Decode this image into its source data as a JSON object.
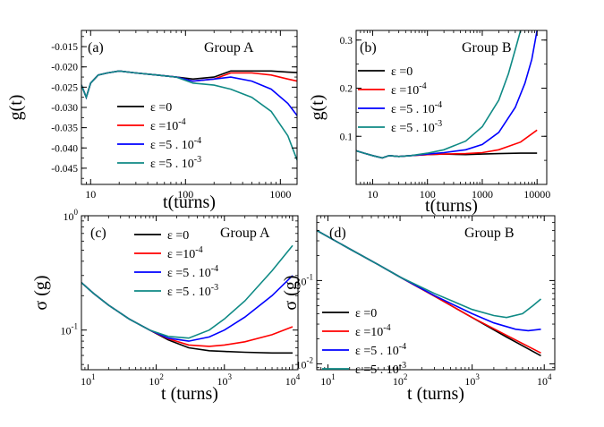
{
  "chart_data": [
    {
      "type": "line",
      "panel_tag": "(a)",
      "group_label": "Group A",
      "xlabel": "t(turns)",
      "ylabel": "g(t)",
      "xscale": "log",
      "yscale": "linear",
      "xlim": [
        8,
        1500
      ],
      "ylim": [
        -0.049,
        -0.011
      ],
      "xticks": [
        {
          "v": 10,
          "label": "10"
        },
        {
          "v": 100,
          "label": "100"
        },
        {
          "v": 1000,
          "label": "1000"
        }
      ],
      "yticks": [
        {
          "v": -0.015,
          "label": "-0.015"
        },
        {
          "v": -0.02,
          "label": "-0.020"
        },
        {
          "v": -0.025,
          "label": "-0.025"
        },
        {
          "v": -0.03,
          "label": "-0.030"
        },
        {
          "v": -0.035,
          "label": "-0.035"
        },
        {
          "v": -0.04,
          "label": "-0.040"
        },
        {
          "v": -0.045,
          "label": "-0.045"
        }
      ],
      "legend_position": "bottom-left",
      "series": [
        {
          "name": "ε =0",
          "color": "#000000",
          "x": [
            8,
            9,
            10,
            12,
            15,
            20,
            30,
            50,
            80,
            120,
            200,
            300,
            500,
            800,
            1200,
            1500
          ],
          "y": [
            -0.0245,
            -0.0275,
            -0.024,
            -0.022,
            -0.0215,
            -0.021,
            -0.0215,
            -0.022,
            -0.0225,
            -0.023,
            -0.0225,
            -0.021,
            -0.021,
            -0.021,
            -0.0213,
            -0.0214
          ]
        },
        {
          "name": "ε =10-4",
          "color": "#ff0000",
          "x": [
            8,
            9,
            10,
            12,
            15,
            20,
            30,
            50,
            80,
            120,
            200,
            300,
            500,
            800,
            1200,
            1500
          ],
          "y": [
            -0.0245,
            -0.0275,
            -0.024,
            -0.022,
            -0.0215,
            -0.021,
            -0.0215,
            -0.022,
            -0.0225,
            -0.0235,
            -0.023,
            -0.0215,
            -0.0215,
            -0.022,
            -0.023,
            -0.0235
          ]
        },
        {
          "name": "ε =5 . 10-4",
          "color": "#0000ff",
          "x": [
            8,
            9,
            10,
            12,
            15,
            20,
            30,
            50,
            80,
            120,
            200,
            300,
            500,
            800,
            1200,
            1500
          ],
          "y": [
            -0.0245,
            -0.0275,
            -0.024,
            -0.022,
            -0.0215,
            -0.021,
            -0.0215,
            -0.022,
            -0.0225,
            -0.0235,
            -0.023,
            -0.0225,
            -0.0235,
            -0.0255,
            -0.029,
            -0.032
          ]
        },
        {
          "name": "ε =5 . 10-3",
          "color": "#0f8a85",
          "x": [
            8,
            9,
            10,
            12,
            15,
            20,
            30,
            50,
            80,
            120,
            200,
            300,
            500,
            800,
            1200,
            1500
          ],
          "y": [
            -0.0245,
            -0.0275,
            -0.024,
            -0.022,
            -0.0215,
            -0.021,
            -0.0215,
            -0.022,
            -0.0225,
            -0.024,
            -0.0245,
            -0.0255,
            -0.0275,
            -0.031,
            -0.037,
            -0.043
          ]
        }
      ]
    },
    {
      "type": "line",
      "panel_tag": "(b)",
      "group_label": "Group B",
      "xlabel": "t(turns)",
      "ylabel": "g(t)",
      "xscale": "log",
      "yscale": "linear",
      "xlim": [
        5,
        15000
      ],
      "ylim": [
        0.0,
        0.32
      ],
      "xticks": [
        {
          "v": 10,
          "label": "10"
        },
        {
          "v": 100,
          "label": "100"
        },
        {
          "v": 1000,
          "label": "1000"
        },
        {
          "v": 10000,
          "label": "10000"
        }
      ],
      "yticks": [
        {
          "v": 0.1,
          "label": "0.1"
        },
        {
          "v": 0.2,
          "label": "0.2"
        },
        {
          "v": 0.3,
          "label": "0.3"
        }
      ],
      "legend_position": "top-left",
      "series": [
        {
          "name": "ε =0",
          "color": "#000000",
          "x": [
            5,
            7,
            10,
            15,
            20,
            30,
            50,
            100,
            200,
            500,
            1000,
            2000,
            5000,
            10000
          ],
          "y": [
            0.07,
            0.065,
            0.06,
            0.055,
            0.06,
            0.058,
            0.06,
            0.062,
            0.063,
            0.062,
            0.063,
            0.064,
            0.065,
            0.065
          ]
        },
        {
          "name": "ε =10-4",
          "color": "#ff0000",
          "x": [
            5,
            7,
            10,
            15,
            20,
            30,
            50,
            100,
            200,
            500,
            1000,
            2000,
            5000,
            10000
          ],
          "y": [
            0.07,
            0.065,
            0.06,
            0.055,
            0.06,
            0.058,
            0.06,
            0.062,
            0.063,
            0.064,
            0.066,
            0.072,
            0.088,
            0.113
          ]
        },
        {
          "name": "ε =5 . 10-4",
          "color": "#0000ff",
          "x": [
            5,
            7,
            10,
            15,
            20,
            30,
            50,
            100,
            200,
            500,
            1000,
            2000,
            4000,
            6000,
            8000,
            10000
          ],
          "y": [
            0.07,
            0.065,
            0.06,
            0.055,
            0.06,
            0.058,
            0.06,
            0.063,
            0.066,
            0.072,
            0.083,
            0.108,
            0.16,
            0.21,
            0.26,
            0.32
          ]
        },
        {
          "name": "ε =5 . 10-3",
          "color": "#0f8a85",
          "x": [
            5,
            7,
            10,
            15,
            20,
            30,
            50,
            100,
            200,
            500,
            1000,
            2000,
            3000,
            4000,
            5000
          ],
          "y": [
            0.07,
            0.065,
            0.06,
            0.055,
            0.06,
            0.058,
            0.06,
            0.065,
            0.072,
            0.09,
            0.12,
            0.175,
            0.23,
            0.28,
            0.32
          ]
        }
      ]
    },
    {
      "type": "line",
      "panel_tag": "(c)",
      "group_label": "Group A",
      "xlabel": "t (turns)",
      "ylabel": "σ (g)",
      "xscale": "log",
      "yscale": "log",
      "xlim": [
        8,
        12000
      ],
      "ylim": [
        0.045,
        1.0
      ],
      "xticks": [
        {
          "v": 10,
          "base": "10",
          "exp": "1"
        },
        {
          "v": 100,
          "base": "10",
          "exp": "2"
        },
        {
          "v": 1000,
          "base": "10",
          "exp": "3"
        },
        {
          "v": 10000,
          "base": "10",
          "exp": "4"
        }
      ],
      "yticks": [
        {
          "v": 0.1,
          "base": "10",
          "exp": "-1"
        },
        {
          "v": 1.0,
          "base": "10",
          "exp": "0"
        }
      ],
      "legend_position": "top-right",
      "series": [
        {
          "name": "ε =0",
          "color": "#000000",
          "x": [
            8,
            12,
            20,
            40,
            80,
            150,
            300,
            600,
            1000,
            2000,
            5000,
            10000
          ],
          "y": [
            0.26,
            0.21,
            0.165,
            0.125,
            0.1,
            0.082,
            0.07,
            0.066,
            0.065,
            0.064,
            0.063,
            0.063
          ]
        },
        {
          "name": "ε =10-4",
          "color": "#ff0000",
          "x": [
            8,
            12,
            20,
            40,
            80,
            150,
            300,
            600,
            1000,
            2000,
            5000,
            10000
          ],
          "y": [
            0.26,
            0.21,
            0.165,
            0.125,
            0.1,
            0.084,
            0.074,
            0.072,
            0.074,
            0.079,
            0.091,
            0.107
          ]
        },
        {
          "name": "ε =5 . 10-4",
          "color": "#0000ff",
          "x": [
            8,
            12,
            20,
            40,
            80,
            150,
            300,
            600,
            1000,
            2000,
            5000,
            10000
          ],
          "y": [
            0.26,
            0.21,
            0.165,
            0.125,
            0.1,
            0.085,
            0.08,
            0.087,
            0.1,
            0.13,
            0.2,
            0.3
          ]
        },
        {
          "name": "ε =5 . 10-3",
          "color": "#0f8a85",
          "x": [
            8,
            12,
            20,
            40,
            80,
            150,
            300,
            600,
            1000,
            2000,
            5000,
            10000
          ],
          "y": [
            0.26,
            0.21,
            0.165,
            0.125,
            0.1,
            0.088,
            0.085,
            0.1,
            0.125,
            0.18,
            0.33,
            0.55
          ]
        }
      ]
    },
    {
      "type": "line",
      "panel_tag": "(d)",
      "group_label": "Group B",
      "xlabel": "t (turns)",
      "ylabel": "σ (g)",
      "xscale": "log",
      "yscale": "log",
      "xlim": [
        7,
        14000
      ],
      "ylim": [
        0.0085,
        0.6
      ],
      "xticks": [
        {
          "v": 10,
          "base": "10",
          "exp": "1"
        },
        {
          "v": 100,
          "base": "10",
          "exp": "2"
        },
        {
          "v": 1000,
          "base": "10",
          "exp": "3"
        },
        {
          "v": 10000,
          "base": "10",
          "exp": "4"
        }
      ],
      "yticks": [
        {
          "v": 0.01,
          "base": "10",
          "exp": "-2"
        },
        {
          "v": 0.1,
          "base": "10",
          "exp": "-1"
        }
      ],
      "legend_position": "bottom-left",
      "series": [
        {
          "name": "ε =0",
          "color": "#000000",
          "x": [
            7,
            20,
            50,
            100,
            300,
            1000,
            3000,
            9000
          ],
          "y": [
            0.4,
            0.24,
            0.155,
            0.11,
            0.065,
            0.036,
            0.021,
            0.0125
          ]
        },
        {
          "name": "ε =10-4",
          "color": "#ff0000",
          "x": [
            7,
            20,
            50,
            100,
            300,
            1000,
            3000,
            9000
          ],
          "y": [
            0.4,
            0.24,
            0.155,
            0.11,
            0.065,
            0.036,
            0.022,
            0.0135
          ]
        },
        {
          "name": "ε =5 . 10-4",
          "color": "#0000ff",
          "x": [
            7,
            20,
            50,
            100,
            300,
            1000,
            2000,
            4000,
            6000,
            9000
          ],
          "y": [
            0.4,
            0.24,
            0.155,
            0.11,
            0.066,
            0.04,
            0.031,
            0.026,
            0.025,
            0.026
          ]
        },
        {
          "name": "ε =5 . 10-3",
          "color": "#0f8a85",
          "x": [
            7,
            20,
            50,
            100,
            300,
            1000,
            2000,
            3000,
            5000,
            7000,
            9000
          ],
          "y": [
            0.4,
            0.24,
            0.155,
            0.11,
            0.07,
            0.045,
            0.038,
            0.036,
            0.04,
            0.05,
            0.06
          ]
        }
      ]
    }
  ]
}
